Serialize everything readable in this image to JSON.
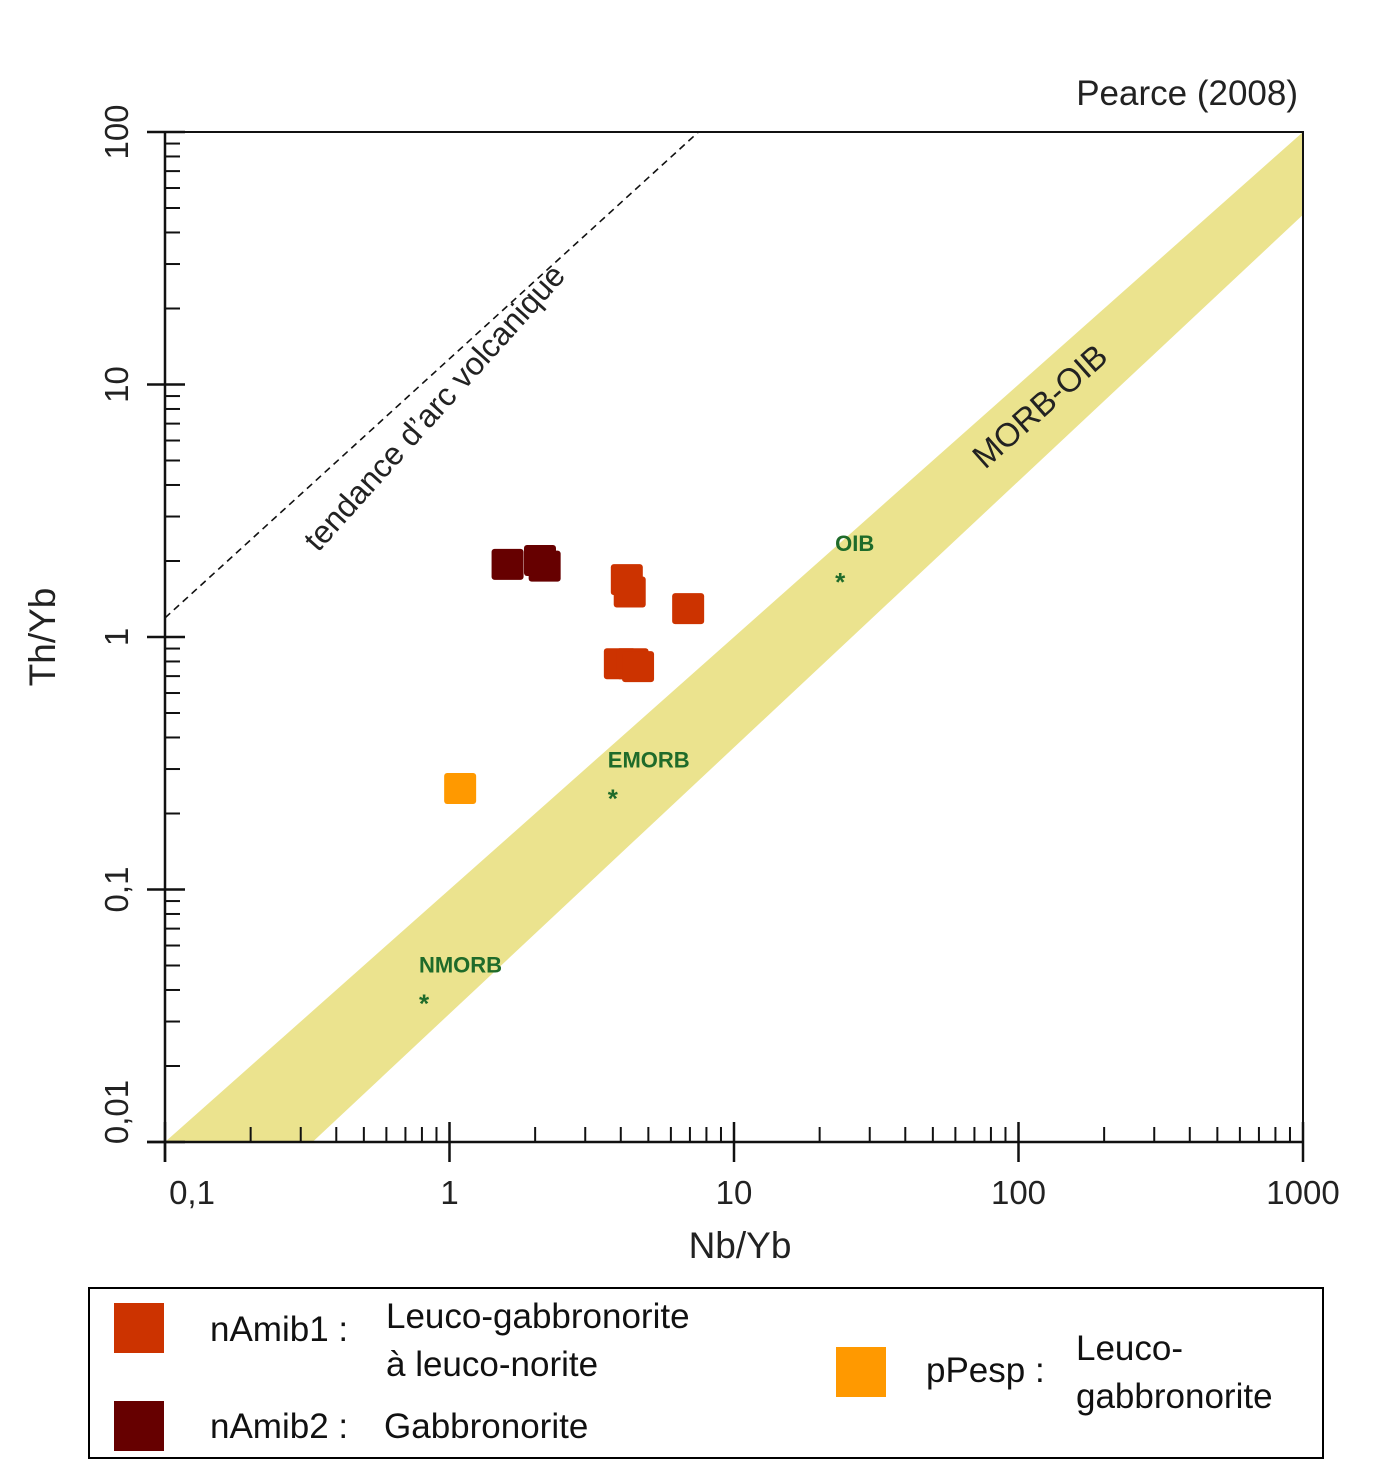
{
  "chart_data": {
    "type": "scatter",
    "title": "",
    "source_note": "Pearce (2008)",
    "xlabel": "Nb/Yb",
    "ylabel": "Th/Yb",
    "xscale": "log",
    "yscale": "log",
    "xlim": [
      0.1,
      1000
    ],
    "ylim": [
      0.01,
      100
    ],
    "xticks": [
      {
        "v": 0.1,
        "label": "0,1"
      },
      {
        "v": 1,
        "label": "1"
      },
      {
        "v": 10,
        "label": "10"
      },
      {
        "v": 100,
        "label": "100"
      },
      {
        "v": 1000,
        "label": "1000"
      }
    ],
    "yticks": [
      {
        "v": 0.01,
        "label": "0,01"
      },
      {
        "v": 0.1,
        "label": "0,1"
      },
      {
        "v": 1,
        "label": "1"
      },
      {
        "v": 10,
        "label": "10"
      },
      {
        "v": 100,
        "label": "100"
      }
    ],
    "grid": false,
    "series": [
      {
        "name": "nAmib1",
        "color": "#cc3300",
        "points": [
          [
            4.2,
            1.68
          ],
          [
            4.3,
            1.5
          ],
          [
            6.9,
            1.29
          ],
          [
            3.97,
            0.78
          ],
          [
            4.4,
            0.78
          ],
          [
            4.6,
            0.76
          ]
        ]
      },
      {
        "name": "nAmib2",
        "color": "#660000",
        "points": [
          [
            1.6,
            1.93
          ],
          [
            2.08,
            2.0
          ],
          [
            2.16,
            1.9
          ]
        ]
      },
      {
        "name": "pPesp",
        "color": "#ff9900",
        "points": [
          [
            1.09,
            0.25
          ]
        ]
      }
    ],
    "references": [
      {
        "label": "NMORB",
        "x": 0.82,
        "y": 0.037
      },
      {
        "label": "EMORB",
        "x": 3.78,
        "y": 0.24
      },
      {
        "label": "OIB",
        "x": 23.8,
        "y": 1.73
      }
    ],
    "reference_color": "#1f6b2a",
    "band": {
      "label": "MORB-OIB",
      "color": "#ebe38e",
      "upper": [
        [
          0.1,
          0.01
        ],
        [
          1000,
          100
        ]
      ],
      "lower": [
        [
          0.33,
          0.01
        ],
        [
          1000,
          47
        ]
      ]
    },
    "arc_trend": {
      "label": "tendance d’arc volcanique",
      "line": [
        [
          0.1,
          1.19
        ],
        [
          7.5,
          100
        ]
      ]
    },
    "legend": {
      "placement": "bottom",
      "entries": [
        {
          "code": "nAmib1",
          "sep": ":",
          "desc_lines": [
            "Leuco-gabbronorite",
            "à leuco-norite"
          ]
        },
        {
          "code": "nAmib2",
          "sep": ":",
          "desc_lines": [
            "Gabbronorite"
          ]
        },
        {
          "code": "pPesp",
          "sep": ":",
          "desc_lines": [
            "Leuco-",
            "gabbronorite"
          ]
        }
      ]
    }
  }
}
